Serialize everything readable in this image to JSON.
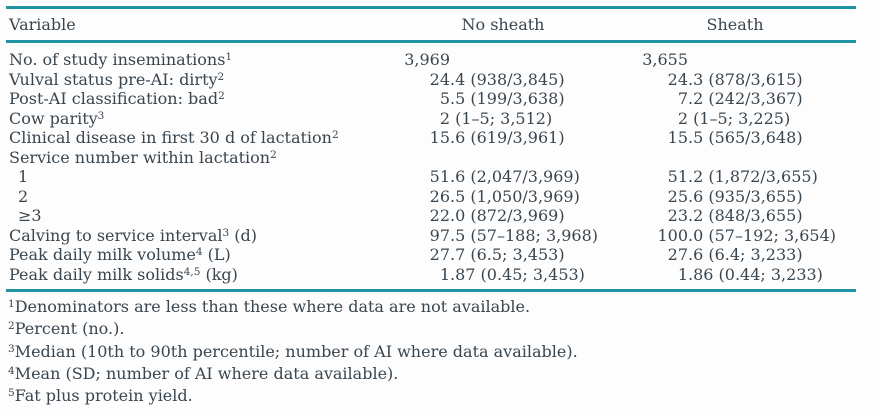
{
  "page": {
    "background": "#fdfdfd",
    "text_color": "#39454f",
    "rule_color": "#2093a2"
  },
  "table": {
    "headers": {
      "variable": "Variable",
      "no_sheath": "No sheath",
      "sheath": "Sheath"
    },
    "rows": [
      {
        "label": "No. of study inseminations",
        "sup": "1",
        "unit": "",
        "indent": false,
        "no_sheath": "3,969",
        "sheath": "3,655"
      },
      {
        "label": "Vulval status pre-AI: dirty",
        "sup": "2",
        "unit": "",
        "indent": false,
        "no_sheath": "24.4 (938/3,845)",
        "sheath": "24.3 (878/3,615)"
      },
      {
        "label": "Post-AI classification: bad",
        "sup": "2",
        "unit": "",
        "indent": false,
        "no_sheath": "5.5 (199/3,638)",
        "sheath": "7.2 (242/3,367)"
      },
      {
        "label": "Cow parity",
        "sup": "3",
        "unit": "",
        "indent": false,
        "no_sheath": "2 (1–5; 3,512)",
        "sheath": "2 (1–5; 3,225)"
      },
      {
        "label": "Clinical disease in first 30 d of lactation",
        "sup": "2",
        "unit": "",
        "indent": false,
        "no_sheath": "15.6 (619/3,961)",
        "sheath": "15.5 (565/3,648)"
      },
      {
        "label": "Service number within lactation",
        "sup": "2",
        "unit": "",
        "indent": false,
        "no_sheath": "",
        "sheath": ""
      },
      {
        "label": "1",
        "sup": "",
        "unit": "",
        "indent": true,
        "no_sheath": "51.6 (2,047/3,969)",
        "sheath": "51.2 (1,872/3,655)"
      },
      {
        "label": "2",
        "sup": "",
        "unit": "",
        "indent": true,
        "no_sheath": "26.5 (1,050/3,969)",
        "sheath": "25.6 (935/3,655)"
      },
      {
        "label": "≥3",
        "sup": "",
        "unit": "",
        "indent": true,
        "no_sheath": "22.0 (872/3,969)",
        "sheath": "23.2 (848/3,655)"
      },
      {
        "label": "Calving to service interval",
        "sup": "3",
        "unit": " (d)",
        "indent": false,
        "no_sheath": "97.5 (57–188; 3,968)",
        "sheath": "100.0 (57–192; 3,654)"
      },
      {
        "label": "Peak daily milk volume",
        "sup": "4",
        "unit": " (L)",
        "indent": false,
        "no_sheath": "27.7 (6.5; 3,453)",
        "sheath": "27.6 (6.4; 3,233)"
      },
      {
        "label": "Peak daily milk solids",
        "sup": "4,5",
        "unit": " (kg)",
        "indent": false,
        "no_sheath": "1.87 (0.45; 3,453)",
        "sheath": "1.86 (0.44; 3,233)"
      }
    ],
    "footnotes": [
      {
        "sup": "1",
        "text": "Denominators are less than these where data are not available."
      },
      {
        "sup": "2",
        "text": "Percent (no.)."
      },
      {
        "sup": "3",
        "text": "Median (10th to 90th percentile; number of AI where data available)."
      },
      {
        "sup": "4",
        "text": "Mean (SD; number of AI where data available)."
      },
      {
        "sup": "5",
        "text": "Fat plus protein yield."
      }
    ]
  }
}
